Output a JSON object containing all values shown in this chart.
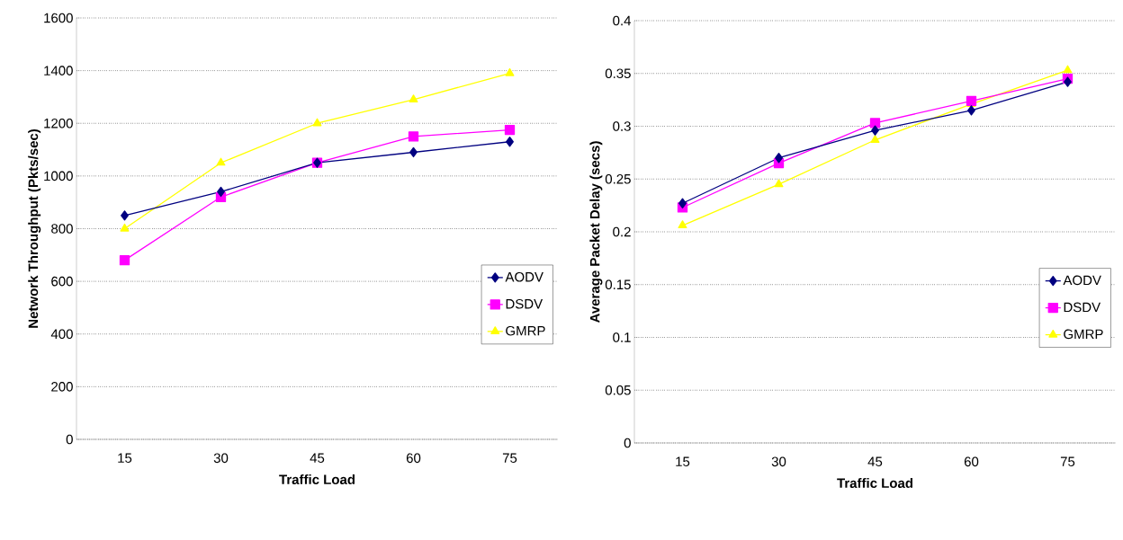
{
  "chart_data": [
    {
      "type": "line",
      "xlabel": "Traffic Load",
      "ylabel": "Network Throughput (Pkts/sec)",
      "categories": [
        "15",
        "30",
        "45",
        "60",
        "75"
      ],
      "ylim": [
        0,
        1600
      ],
      "yticks": [
        0,
        200,
        400,
        600,
        800,
        1000,
        1200,
        1400,
        1600
      ],
      "grid": "y",
      "legend": "right",
      "line_style": "solid",
      "series": [
        {
          "name": "AODV",
          "color": "#000080",
          "marker": "diamond",
          "values": [
            850,
            940,
            1050,
            1090,
            1130
          ]
        },
        {
          "name": "DSDV",
          "color": "#ff00ff",
          "marker": "square",
          "values": [
            680,
            920,
            1050,
            1150,
            1175
          ]
        },
        {
          "name": "GMRP",
          "color": "#ffff00",
          "marker": "triangle",
          "values": [
            800,
            1050,
            1200,
            1290,
            1390
          ]
        }
      ]
    },
    {
      "type": "line",
      "xlabel": "Traffic Load",
      "ylabel": "Average Packet Delay (secs)",
      "categories": [
        "15",
        "30",
        "45",
        "60",
        "75"
      ],
      "ylim": [
        0,
        0.4
      ],
      "yticks": [
        0,
        0.05,
        0.1,
        0.15,
        0.2,
        0.25,
        0.3,
        0.35,
        0.4
      ],
      "grid": "y",
      "legend": "right",
      "line_style": "solid",
      "series": [
        {
          "name": "AODV",
          "color": "#000080",
          "marker": "diamond",
          "values": [
            0.227,
            0.27,
            0.296,
            0.315,
            0.342
          ]
        },
        {
          "name": "DSDV",
          "color": "#ff00ff",
          "marker": "square",
          "values": [
            0.223,
            0.265,
            0.303,
            0.324,
            0.345
          ]
        },
        {
          "name": "GMRP",
          "color": "#ffff00",
          "marker": "triangle",
          "values": [
            0.206,
            0.245,
            0.287,
            0.321,
            0.353
          ]
        }
      ]
    }
  ]
}
